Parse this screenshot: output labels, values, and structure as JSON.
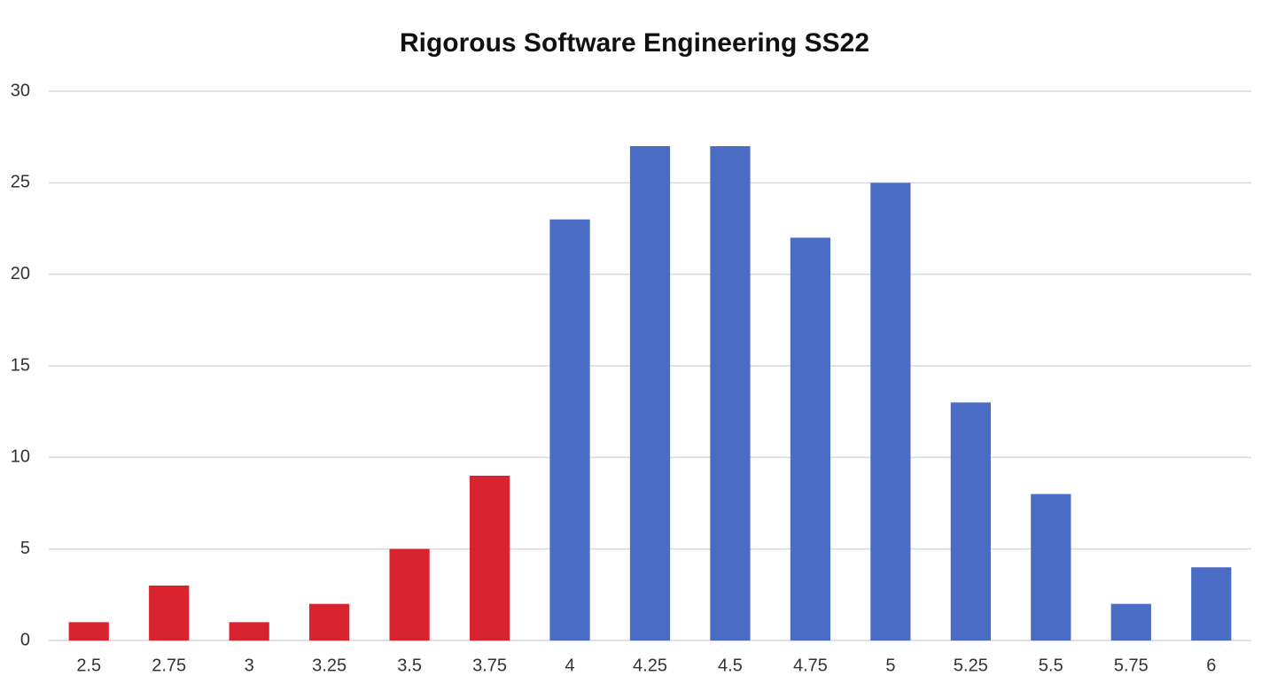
{
  "chart_data": {
    "type": "bar",
    "title": "Rigorous Software Engineering SS22",
    "categories": [
      "2.5",
      "2.75",
      "3",
      "3.25",
      "3.5",
      "3.75",
      "4",
      "4.25",
      "4.5",
      "4.75",
      "5",
      "5.25",
      "5.5",
      "5.75",
      "6"
    ],
    "values": [
      1,
      3,
      1,
      2,
      5,
      9,
      23,
      27,
      27,
      22,
      25,
      13,
      8,
      2,
      4
    ],
    "colors": [
      "#d9232e",
      "#d9232e",
      "#d9232e",
      "#d9232e",
      "#d9232e",
      "#d9232e",
      "#4a6cc4",
      "#4a6cc4",
      "#4a6cc4",
      "#4a6cc4",
      "#4a6cc4",
      "#4a6cc4",
      "#4a6cc4",
      "#4a6cc4",
      "#4a6cc4"
    ],
    "ylim": [
      0,
      30
    ],
    "yticks": [
      0,
      5,
      10,
      15,
      20,
      25,
      30
    ],
    "grid": true
  }
}
